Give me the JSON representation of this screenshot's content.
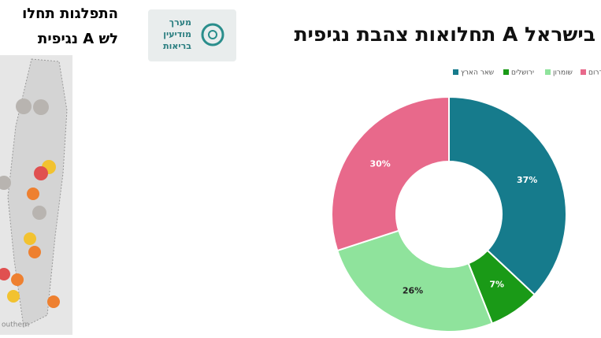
{
  "side_panel": {
    "lines": [
      "התפלגות תחלו",
      "נגיפית A לש"
    ],
    "map_label": "outhern"
  },
  "logo": {
    "lines": [
      "מערך",
      "מודיעין",
      "בריאות"
    ]
  },
  "chart_data": {
    "type": "pie",
    "title": "תחלואות צהבת נגיפית A בישראל",
    "categories": [
      "שאר הארץ",
      "ירושלים",
      "שומרון",
      "דרום"
    ],
    "values": [
      37,
      7,
      26,
      30
    ],
    "value_labels": [
      "37%",
      "7%",
      "26%",
      "30%"
    ],
    "colors": [
      "#167b8c",
      "#1a9a17",
      "#8fe39c",
      "#e8698b"
    ],
    "legend": "top-right"
  }
}
